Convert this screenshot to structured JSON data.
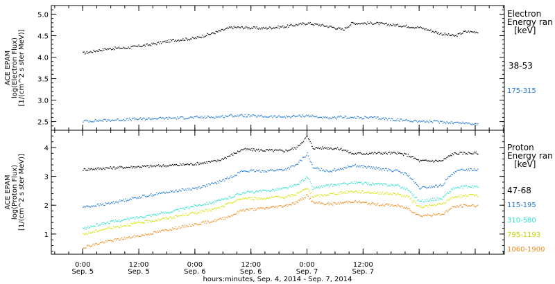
{
  "chart_data": [
    {
      "type": "scatter",
      "panel": "electron",
      "ylabel_lines": [
        "ACE EPAM",
        "log(Electron Flux)",
        "[1/(cm^2 s ster MeV)]"
      ],
      "yticks": [
        "2.5",
        "3.0",
        "3.5",
        "4.0",
        "4.5",
        "5.0"
      ],
      "ylim": [
        2.3,
        5.2
      ],
      "legend_title_lines": [
        "Electron",
        "Energy ran"
      ],
      "legend_unit": "[keV]",
      "series": [
        {
          "name": "38-53",
          "color": "#000000",
          "x": [
            0.0,
            0.2,
            0.4,
            0.6,
            0.8,
            1.0,
            1.2,
            1.32,
            1.42,
            1.6,
            1.8,
            2.0,
            2.2,
            2.32,
            2.4,
            2.6,
            2.8,
            3.0,
            3.2,
            3.32,
            3.4,
            3.52
          ],
          "y": [
            4.1,
            4.2,
            4.23,
            4.3,
            4.4,
            4.45,
            4.6,
            4.7,
            4.7,
            4.68,
            4.72,
            4.8,
            4.72,
            4.65,
            4.8,
            4.8,
            4.75,
            4.7,
            4.55,
            4.5,
            4.6,
            4.6
          ]
        },
        {
          "name": "175-315",
          "color": "#1f78d8",
          "x": [
            0.0,
            0.3,
            0.6,
            0.9,
            1.2,
            1.32,
            1.42,
            1.6,
            1.8,
            2.0,
            2.2,
            2.32,
            2.4,
            2.6,
            2.8,
            3.0,
            3.2,
            3.4,
            3.52
          ],
          "y": [
            2.52,
            2.55,
            2.58,
            2.6,
            2.62,
            2.65,
            2.65,
            2.63,
            2.62,
            2.65,
            2.58,
            2.62,
            2.6,
            2.6,
            2.55,
            2.52,
            2.5,
            2.48,
            2.45
          ]
        }
      ]
    },
    {
      "type": "scatter",
      "panel": "proton",
      "ylabel_lines": [
        "ACE EPAM",
        "log(Proton Flux)",
        "[1/(cm^2 s ster MeV)]"
      ],
      "yticks": [
        "1",
        "2",
        "3",
        "4"
      ],
      "ylim": [
        0.3,
        4.6
      ],
      "legend_title_lines": [
        "Proton",
        "Energy ran"
      ],
      "legend_unit": "[keV]",
      "series": [
        {
          "name": "47-68",
          "color": "#000000",
          "x": [
            0.0,
            0.2,
            0.5,
            0.8,
            1.0,
            1.2,
            1.32,
            1.42,
            1.6,
            1.8,
            1.9,
            2.0,
            2.05,
            2.2,
            2.32,
            2.4,
            2.6,
            2.8,
            2.9,
            3.0,
            3.2,
            3.3,
            3.4,
            3.52
          ],
          "y": [
            3.25,
            3.3,
            3.35,
            3.4,
            3.45,
            3.55,
            3.75,
            3.95,
            3.92,
            3.9,
            4.0,
            4.4,
            4.0,
            4.0,
            3.95,
            3.8,
            3.82,
            3.82,
            3.75,
            3.55,
            3.55,
            3.8,
            3.82,
            3.82
          ]
        },
        {
          "name": "115-195",
          "color": "#1f78d8",
          "x": [
            0.0,
            0.2,
            0.5,
            0.8,
            1.0,
            1.2,
            1.32,
            1.42,
            1.6,
            1.8,
            1.9,
            2.0,
            2.05,
            2.2,
            2.32,
            2.4,
            2.6,
            2.8,
            2.9,
            3.0,
            3.2,
            3.3,
            3.4,
            3.52
          ],
          "y": [
            1.95,
            2.05,
            2.3,
            2.5,
            2.6,
            2.8,
            3.0,
            3.2,
            3.2,
            3.25,
            3.4,
            3.8,
            3.3,
            3.2,
            3.3,
            3.4,
            3.3,
            3.2,
            3.05,
            2.6,
            2.7,
            3.15,
            3.25,
            3.25
          ]
        },
        {
          "name": "310-580",
          "color": "#29e0cc",
          "x": [
            0.0,
            0.2,
            0.5,
            0.8,
            1.0,
            1.2,
            1.32,
            1.42,
            1.6,
            1.8,
            1.9,
            2.0,
            2.05,
            2.2,
            2.32,
            2.4,
            2.6,
            2.8,
            2.9,
            3.0,
            3.2,
            3.3,
            3.4,
            3.52
          ],
          "y": [
            1.2,
            1.4,
            1.6,
            1.8,
            2.0,
            2.15,
            2.3,
            2.45,
            2.5,
            2.6,
            2.7,
            3.0,
            2.6,
            2.7,
            2.75,
            2.8,
            2.75,
            2.7,
            2.55,
            2.15,
            2.25,
            2.6,
            2.65,
            2.65
          ]
        },
        {
          "name": "795-1193",
          "color": "#d8e000",
          "x": [
            0.0,
            0.2,
            0.5,
            0.8,
            1.0,
            1.2,
            1.32,
            1.42,
            1.6,
            1.8,
            1.9,
            2.0,
            2.05,
            2.2,
            2.32,
            2.4,
            2.6,
            2.8,
            2.9,
            3.0,
            3.2,
            3.3,
            3.4,
            3.52
          ],
          "y": [
            1.0,
            1.2,
            1.4,
            1.6,
            1.75,
            1.9,
            2.1,
            2.25,
            2.25,
            2.3,
            2.4,
            2.6,
            2.3,
            2.4,
            2.45,
            2.5,
            2.45,
            2.4,
            2.3,
            1.95,
            2.05,
            2.3,
            2.35,
            2.35
          ]
        },
        {
          "name": "1060-1900",
          "color": "#f08a1a",
          "x": [
            0.0,
            0.2,
            0.5,
            0.8,
            1.0,
            1.2,
            1.32,
            1.42,
            1.6,
            1.8,
            1.9,
            2.0,
            2.05,
            2.2,
            2.32,
            2.4,
            2.6,
            2.8,
            2.9,
            3.0,
            3.2,
            3.3,
            3.4,
            3.52
          ],
          "y": [
            0.55,
            0.75,
            0.95,
            1.2,
            1.35,
            1.5,
            1.65,
            1.85,
            1.9,
            2.0,
            2.1,
            2.35,
            2.1,
            2.05,
            2.1,
            2.15,
            2.05,
            2.0,
            1.9,
            1.65,
            1.7,
            1.95,
            2.0,
            2.0
          ]
        }
      ]
    }
  ],
  "xaxis": {
    "xlim": [
      -0.28,
      3.76
    ],
    "major_ticks": [
      0,
      0.5,
      1,
      1.5,
      2,
      2.5,
      3,
      3.5
    ],
    "tick_labels": [
      {
        "x": 0.0,
        "time": "0:00",
        "date": "Sep. 5"
      },
      {
        "x": 0.5,
        "time": "12:00",
        "date": "Sep. 5"
      },
      {
        "x": 1.0,
        "time": "0:00",
        "date": "Sep. 6"
      },
      {
        "x": 1.5,
        "time": "12:00",
        "date": "Sep. 6"
      },
      {
        "x": 2.0,
        "time": "0:00",
        "date": "Sep. 7"
      },
      {
        "x": 2.5,
        "time": "12:00",
        "date": "Sep. 7"
      }
    ],
    "xlabel": "hours:minutes, Sep.  4, 2014 - Sep.  7, 2014"
  }
}
